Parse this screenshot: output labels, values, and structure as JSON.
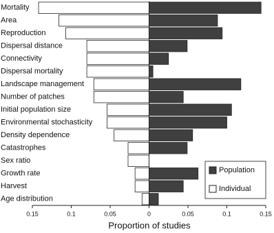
{
  "chart_data": {
    "type": "bar",
    "orientation": "horizontal",
    "x_label": "Proportion of studies",
    "categories": [
      "Mortality",
      "Area",
      "Reproduction",
      "Dispersal distance",
      "Connectivity",
      "Dispersal mortality",
      "Landscape management",
      "Number of patches",
      "Initial population size",
      "Environmental stochasticity",
      "Density dependence",
      "Catastrophes",
      "Sex ratio",
      "Growth rate",
      "Harvest",
      "Age distribution"
    ],
    "series": [
      {
        "name": "Population",
        "color": "#404040",
        "values": [
          0.144,
          0.088,
          0.094,
          0.049,
          0.025,
          0.005,
          0.118,
          0.044,
          0.106,
          0.1,
          0.056,
          0.049,
          0,
          0.063,
          0.044,
          0.012
        ]
      },
      {
        "name": "Individual",
        "color": "#ffffff",
        "values": [
          -0.142,
          -0.116,
          -0.107,
          -0.08,
          -0.08,
          -0.08,
          -0.071,
          -0.071,
          -0.054,
          -0.054,
          -0.045,
          -0.027,
          -0.027,
          -0.018,
          -0.018,
          -0.009
        ]
      }
    ],
    "xlim": [
      -0.15,
      0.15
    ],
    "xticks": [
      {
        "value": -0.15,
        "label": "0.15"
      },
      {
        "value": -0.1,
        "label": "0.1"
      },
      {
        "value": -0.05,
        "label": "0.05"
      },
      0,
      0.05,
      0.1,
      0.15
    ],
    "legend": "lower right"
  }
}
